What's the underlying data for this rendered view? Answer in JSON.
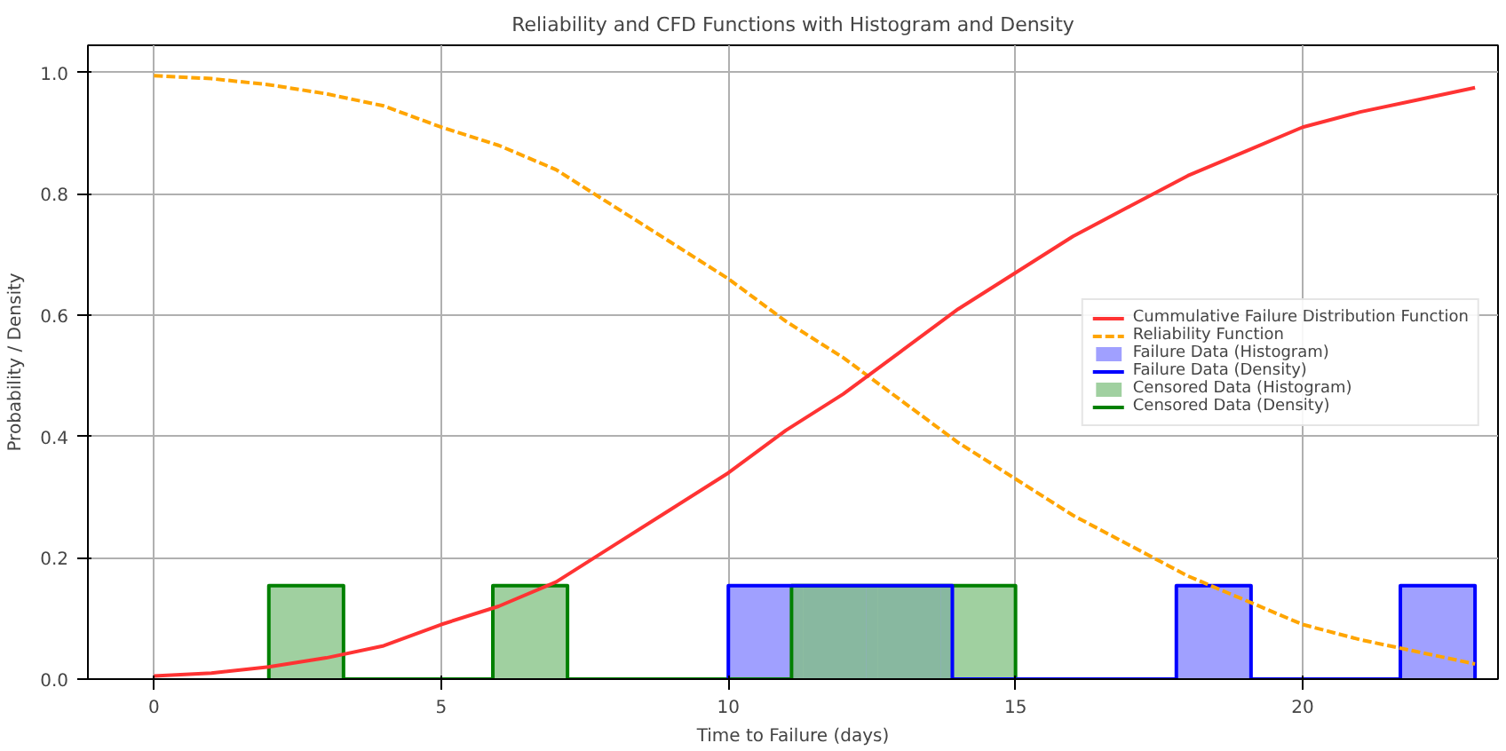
{
  "chart_data": {
    "type": "histogram",
    "title": "Reliability and CFD Functions with Histogram and Density",
    "xlabel": "Time to Failure (days)",
    "ylabel": "Probability / Density",
    "xlim": [
      -1.15,
      23.4
    ],
    "ylim": [
      0,
      1.045
    ],
    "xticks": [
      0,
      5,
      10,
      15,
      20
    ],
    "yticks": [
      {
        "value": 0,
        "label": "0.0"
      },
      {
        "value": 0.2,
        "label": "0.2"
      },
      {
        "value": 0.4,
        "label": "0.4"
      },
      {
        "value": 0.6,
        "label": "0.6"
      },
      {
        "value": 0.8,
        "label": "0.8"
      },
      {
        "value": 1.0,
        "label": "1.0"
      }
    ],
    "grid": true,
    "legend": "right",
    "series": [
      {
        "name": "Cummulative Failure Distribution Function",
        "type": "line",
        "line_style": "solid",
        "color": "#ff3333",
        "x": [
          0,
          1,
          2,
          3,
          4,
          5,
          6,
          7,
          8,
          9,
          10,
          11,
          12,
          13,
          14,
          15,
          16,
          17,
          18,
          19,
          20,
          21,
          22,
          23
        ],
        "values": [
          0.005,
          0.01,
          0.02,
          0.035,
          0.055,
          0.09,
          0.12,
          0.16,
          0.22,
          0.28,
          0.34,
          0.41,
          0.47,
          0.54,
          0.61,
          0.67,
          0.73,
          0.78,
          0.83,
          0.87,
          0.91,
          0.935,
          0.955,
          0.975
        ]
      },
      {
        "name": "Reliability Function",
        "type": "line",
        "line_style": "dashed",
        "color": "#ffa500",
        "x": [
          0,
          1,
          2,
          3,
          4,
          5,
          6,
          7,
          8,
          9,
          10,
          11,
          12,
          13,
          14,
          15,
          16,
          17,
          18,
          19,
          20,
          21,
          22,
          23
        ],
        "values": [
          0.995,
          0.99,
          0.98,
          0.965,
          0.945,
          0.91,
          0.88,
          0.84,
          0.78,
          0.72,
          0.66,
          0.59,
          0.53,
          0.46,
          0.39,
          0.33,
          0.27,
          0.22,
          0.17,
          0.13,
          0.09,
          0.065,
          0.045,
          0.025
        ]
      },
      {
        "name": "Failure Data (Histogram)",
        "color": "#8080ff",
        "bins": [
          10,
          11.3,
          12.6,
          13.9,
          15.2,
          16.5,
          17.8,
          19.1,
          20.4,
          21.7,
          23.0
        ],
        "values": [
          0.154,
          0.154,
          0.154,
          0,
          0,
          0,
          0.154,
          0,
          0,
          0.154
        ]
      },
      {
        "name": "Failure Data (Density)",
        "type": "line",
        "line_style": "solid",
        "color": "#0000ff",
        "x": [
          10,
          10,
          13.9,
          13.9,
          17.8,
          17.8,
          19.1,
          19.1,
          21.7,
          21.7,
          23,
          23
        ],
        "values": [
          0,
          0.154,
          0.154,
          0,
          0,
          0.154,
          0.154,
          0,
          0,
          0.154,
          0.154,
          0
        ]
      },
      {
        "name": "Censored Data (Histogram)",
        "color": "#80c080",
        "bins": [
          2.0,
          3.3,
          4.6,
          5.9,
          7.2,
          8.5,
          9.8,
          11.1,
          12.4,
          13.7,
          15.0
        ],
        "values": [
          0.154,
          0,
          0,
          0.154,
          0,
          0,
          0,
          0.154,
          0.154,
          0.154
        ]
      },
      {
        "name": "Censored Data (Density)",
        "type": "line",
        "line_style": "solid",
        "color": "#008000",
        "x": [
          2,
          2,
          3.3,
          3.3,
          5.9,
          5.9,
          7.2,
          7.2,
          11.1,
          11.1,
          15,
          15
        ],
        "values": [
          0,
          0.154,
          0.154,
          0,
          0,
          0.154,
          0.154,
          0,
          0,
          0.154,
          0.154,
          0
        ]
      }
    ]
  }
}
